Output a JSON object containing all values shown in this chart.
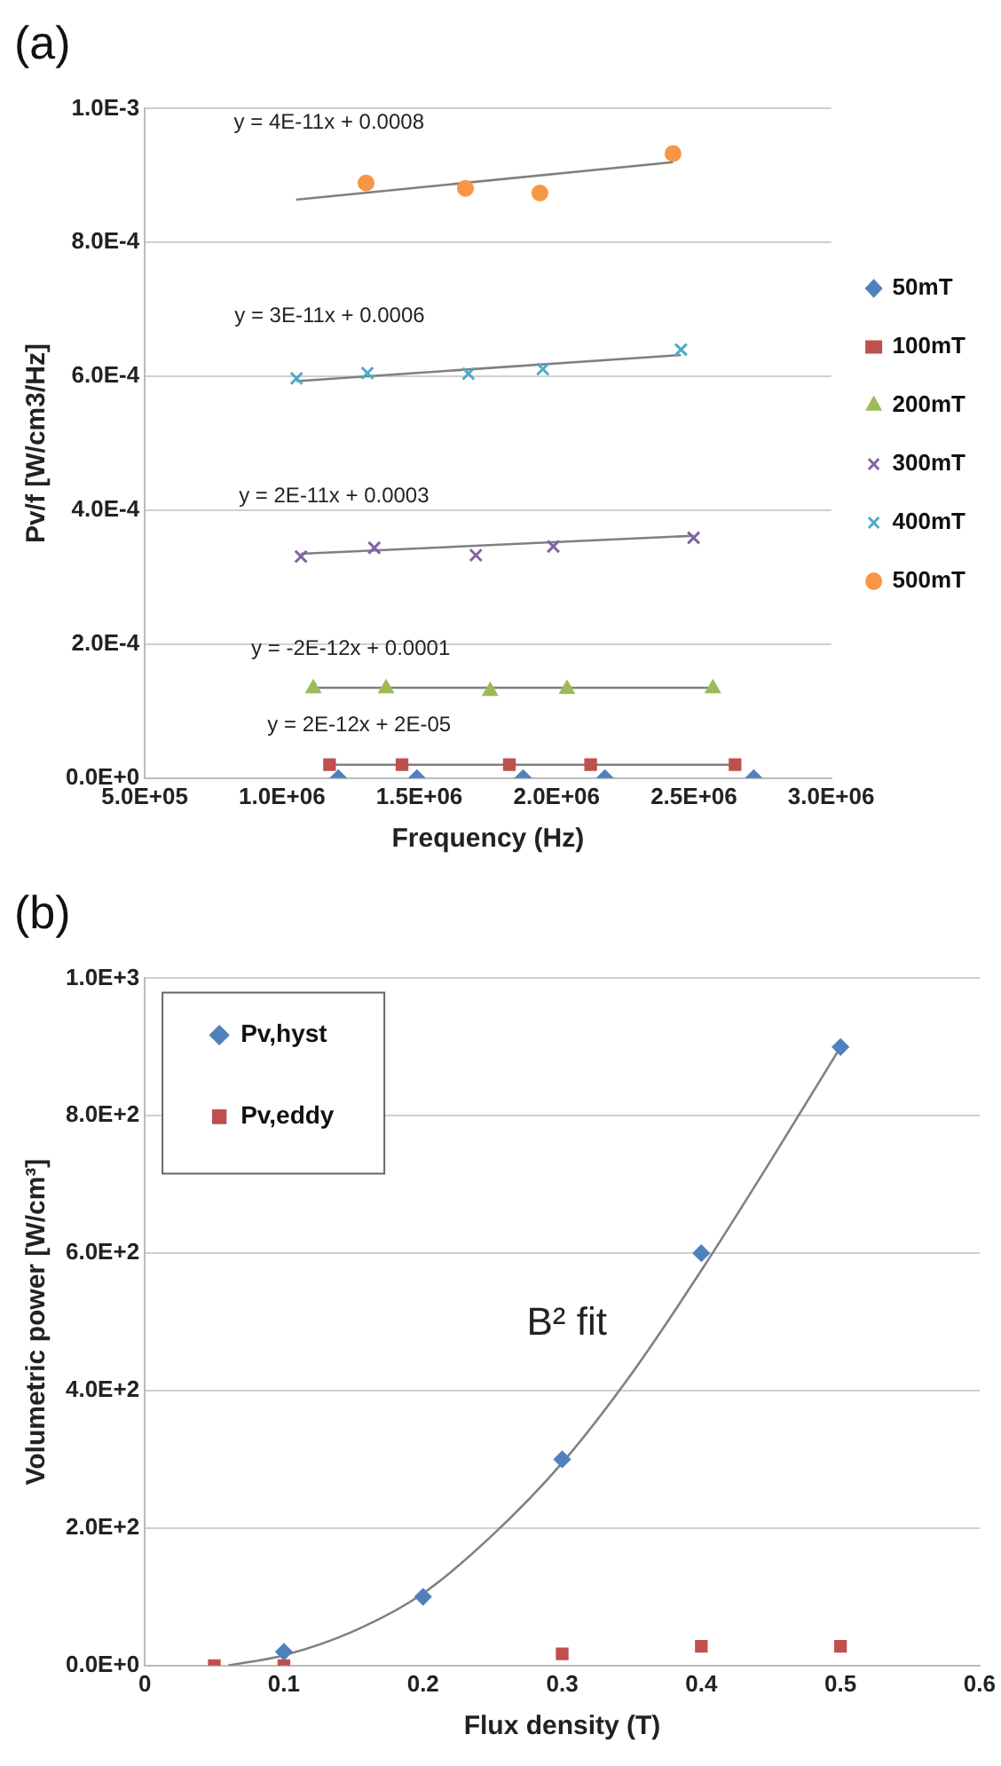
{
  "chart_data": [
    {
      "type": "scatter",
      "title": "(a)",
      "xlabel": "Frequency (Hz)",
      "ylabel": "Pv/f [W/cm3/Hz]",
      "xlim": [
        500000,
        3000000
      ],
      "xticks": [
        {
          "value": 500000,
          "label": "5.0E+05"
        },
        {
          "value": 1000000,
          "label": "1.0E+06"
        },
        {
          "value": 1500000,
          "label": "1.5E+06"
        },
        {
          "value": 2000000,
          "label": "2.0E+06"
        },
        {
          "value": 2500000,
          "label": "2.5E+06"
        },
        {
          "value": 3000000,
          "label": "3.0E+06"
        }
      ],
      "ylim": [
        0,
        0.001
      ],
      "yticks": [
        {
          "value": 0,
          "label": "0.0E+0"
        },
        {
          "value": 0.0002,
          "label": "2.0E-4"
        },
        {
          "value": 0.0004,
          "label": "4.0E-4"
        },
        {
          "value": 0.0006,
          "label": "6.0E-4"
        },
        {
          "value": 0.0008,
          "label": "8.0E-4"
        },
        {
          "value": 0.001,
          "label": "1.0E-3"
        }
      ],
      "grid": "y",
      "legend": "right",
      "series": [
        {
          "name": "50mT",
          "type": "scatter",
          "marker": "diamond",
          "color": "#4f81bd",
          "x": [
            1205000,
            1491000,
            1878000,
            2176000,
            2718000
          ],
          "values": [
            0,
            0,
            0,
            0,
            0
          ]
        },
        {
          "name": "100mT",
          "type": "scatter",
          "marker": "square",
          "color": "#c0504d",
          "x": [
            1173000,
            1437000,
            1828000,
            2124000,
            2650000
          ],
          "values": [
            2e-05,
            2e-05,
            2e-05,
            2e-05,
            2e-05
          ]
        },
        {
          "name": "200mT",
          "type": "scatter",
          "marker": "triangle",
          "color": "#9bbb59",
          "x": [
            1114000,
            1379000,
            1758000,
            2038000,
            2569000
          ],
          "values": [
            0.000134,
            0.000134,
            0.00013,
            0.000133,
            0.000134
          ]
        },
        {
          "name": "300mT",
          "type": "scatter",
          "marker": "cross",
          "color": "#8064a2",
          "x": [
            1069000,
            1336000,
            1706000,
            1988000,
            2499000
          ],
          "values": [
            0.000331,
            0.000344,
            0.000333,
            0.000346,
            0.000359
          ]
        },
        {
          "name": "400mT",
          "type": "scatter",
          "marker": "cross",
          "color": "#4bacc6",
          "x": [
            1053000,
            1311000,
            1679000,
            1950000,
            2453000
          ],
          "values": [
            0.000597,
            0.000605,
            0.000604,
            0.000611,
            0.00064
          ]
        },
        {
          "name": "500mT",
          "type": "scatter",
          "marker": "circle",
          "color": "#f79646",
          "x": [
            1306000,
            1668000,
            1939000,
            2424000
          ],
          "values": [
            0.000889,
            0.000881,
            0.000874,
            0.000933
          ]
        },
        {
          "type": "line",
          "marker": "none",
          "color": "#808080",
          "x": [
            1173000,
            2650000
          ],
          "values": [
            2e-05,
            2e-05
          ]
        },
        {
          "type": "line",
          "marker": "none",
          "color": "#808080",
          "x": [
            1114000,
            2569000
          ],
          "values": [
            0.000135,
            0.000135
          ]
        },
        {
          "type": "line",
          "marker": "none",
          "color": "#808080",
          "x": [
            1069000,
            2499000
          ],
          "values": [
            0.000335,
            0.000362
          ]
        },
        {
          "type": "line",
          "marker": "none",
          "color": "#808080",
          "x": [
            1053000,
            2453000
          ],
          "values": [
            0.000593,
            0.000632
          ]
        },
        {
          "type": "line",
          "marker": "none",
          "color": "#808080",
          "x": [
            1051000,
            2424000
          ],
          "values": [
            0.000864,
            0.00092
          ]
        }
      ],
      "annotations": [
        "y = 4E-11x + 0.0008",
        "y = 3E-11x + 0.0006",
        "y = 2E-11x + 0.0003",
        "y = -2E-12x + 0.0001",
        "y = 2E-12x + 2E-05"
      ]
    },
    {
      "type": "scatter",
      "title": "(b)",
      "xlabel": "Flux density (T)",
      "ylabel": "Volumetric power [W/cm³]",
      "xlim": [
        0,
        0.6
      ],
      "xticks": [
        0,
        0.1,
        0.2,
        0.3,
        0.4,
        0.5,
        0.6
      ],
      "ylim": [
        0,
        1000
      ],
      "yticks": [
        {
          "value": 0,
          "label": "0.0E+0"
        },
        {
          "value": 200,
          "label": "2.0E+2"
        },
        {
          "value": 400,
          "label": "4.0E+2"
        },
        {
          "value": 600,
          "label": "6.0E+2"
        },
        {
          "value": 800,
          "label": "8.0E+2"
        },
        {
          "value": 1000,
          "label": "1.0E+3"
        }
      ],
      "grid": "y",
      "legend": "top left",
      "series": [
        {
          "name": "Pv,hyst",
          "type": "scatter",
          "marker": "diamond",
          "color": "#4f81bd",
          "x": [
            0.1,
            0.2,
            0.3,
            0.4,
            0.5
          ],
          "values": [
            20,
            100,
            300,
            600,
            900
          ]
        },
        {
          "name": "Pv,eddy",
          "type": "scatter",
          "marker": "square",
          "color": "#c0504d",
          "x": [
            0.05,
            0.1,
            0.3,
            0.4,
            0.5
          ],
          "values": [
            0,
            0,
            17,
            28,
            28
          ]
        },
        {
          "type": "line",
          "marker": "none",
          "color": "#808080",
          "x": [
            0.06,
            0.1,
            0.15,
            0.2,
            0.25,
            0.3,
            0.35,
            0.4,
            0.45,
            0.5
          ],
          "values": [
            0,
            15,
            50,
            105,
            190,
            295,
            425,
            575,
            735,
            900
          ]
        }
      ],
      "annotations": [
        "B² fit"
      ]
    }
  ]
}
